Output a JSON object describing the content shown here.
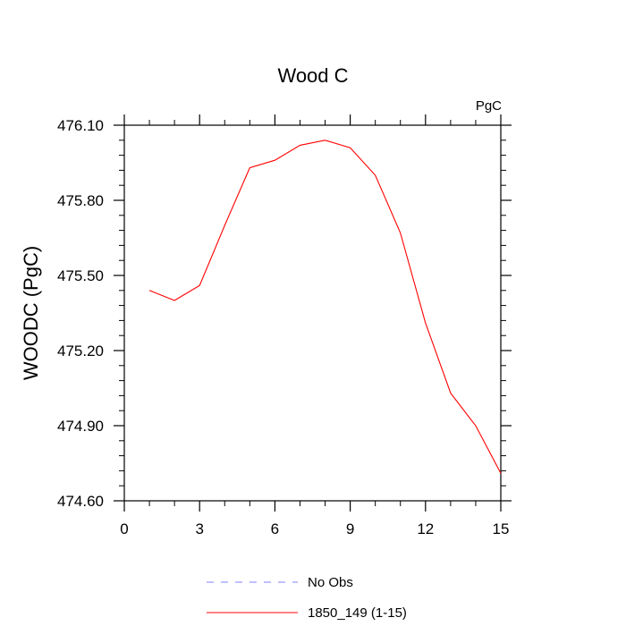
{
  "chart_data": {
    "type": "line",
    "title": "Wood C",
    "units_label": "PgC",
    "xlabel": "",
    "ylabel": "WOODC  (PgC)",
    "xlim": [
      0,
      15
    ],
    "ylim": [
      474.6,
      476.1
    ],
    "x_ticks": [
      0,
      3,
      6,
      9,
      12,
      15
    ],
    "x_tick_labels": [
      "0",
      "3",
      "6",
      "9",
      "12",
      "15"
    ],
    "y_ticks": [
      474.6,
      474.9,
      475.2,
      475.5,
      475.8,
      476.1
    ],
    "y_tick_labels": [
      "474.60",
      "474.90",
      "475.20",
      "475.50",
      "475.80",
      "476.10"
    ],
    "x_minor_step": 1,
    "y_minor_step": 0.06,
    "grid": false,
    "legend_position": "bottom",
    "series": [
      {
        "name": "No Obs",
        "color": "#8080ff",
        "dash": true,
        "x": [],
        "y": []
      },
      {
        "name": "1850_149 (1-15)",
        "color": "#ff0000",
        "dash": false,
        "x": [
          1,
          2,
          3,
          4,
          5,
          6,
          7,
          8,
          9,
          10,
          11,
          12,
          13,
          14,
          15
        ],
        "y": [
          475.44,
          475.4,
          475.46,
          475.7,
          475.93,
          475.96,
          476.02,
          476.04,
          476.01,
          475.9,
          475.67,
          475.31,
          475.03,
          474.9,
          474.71
        ]
      }
    ]
  }
}
